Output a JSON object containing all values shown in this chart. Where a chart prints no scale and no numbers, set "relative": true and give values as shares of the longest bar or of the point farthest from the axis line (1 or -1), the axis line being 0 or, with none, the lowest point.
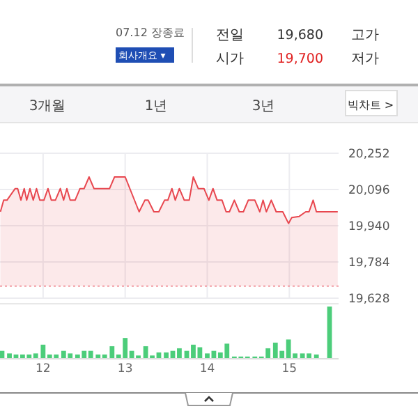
{
  "chart_data": [
    {
      "type": "other",
      "annotations": [
        "07.12 장종료",
        "회사개요 ▾",
        "전일",
        "19,680",
        "고가",
        "시가",
        "19,700",
        "저가",
        "3개월",
        "1년",
        "3년",
        "빅차트 >"
      ]
    },
    {
      "type": "area",
      "color": "#e8474f",
      "xlim": [
        11.475,
        15.6
      ],
      "ylim": [
        19628,
        20252
      ],
      "yticks": [
        {
          "value": 20252,
          "label": "20,252"
        },
        {
          "value": 20096,
          "label": "20,096"
        },
        {
          "value": 19940,
          "label": "19,940"
        },
        {
          "value": 19784,
          "label": "19,784"
        },
        {
          "value": 19628,
          "label": "19,628"
        }
      ],
      "xticks": [
        12,
        13,
        14,
        15
      ],
      "tick_labels": "y",
      "grid": true,
      "ref_lines": [
        {
          "axis": "y",
          "value": 19680,
          "color": "#f2a0a8",
          "line_style": "dotted"
        }
      ],
      "x": [
        11.48,
        11.52,
        11.56,
        11.66,
        11.69,
        11.73,
        11.77,
        11.8,
        11.84,
        11.88,
        11.92,
        11.96,
        12.01,
        12.06,
        12.1,
        12.15,
        12.21,
        12.25,
        12.29,
        12.33,
        12.39,
        12.45,
        12.5,
        12.56,
        12.62,
        12.81,
        12.87,
        13.0,
        13.17,
        13.24,
        13.28,
        13.35,
        13.41,
        13.48,
        13.52,
        13.57,
        13.61,
        13.66,
        13.72,
        13.78,
        13.83,
        13.89,
        13.96,
        14.02,
        14.07,
        14.12,
        14.18,
        14.23,
        14.27,
        14.33,
        14.39,
        14.44,
        14.5,
        14.58,
        14.64,
        14.68,
        14.72,
        14.78,
        14.84,
        14.92,
        14.99,
        15.03,
        15.12,
        15.2,
        15.24,
        15.29,
        15.33,
        15.59
      ],
      "values": [
        20000,
        20050,
        20050,
        20100,
        20100,
        20050,
        20100,
        20050,
        20100,
        20050,
        20100,
        20050,
        20050,
        20100,
        20050,
        20050,
        20100,
        20050,
        20100,
        20050,
        20050,
        20100,
        20100,
        20150,
        20100,
        20100,
        20150,
        20150,
        20000,
        20050,
        20050,
        20000,
        20000,
        20050,
        20050,
        20100,
        20050,
        20100,
        20050,
        20050,
        20150,
        20100,
        20100,
        20050,
        20100,
        20050,
        20050,
        20000,
        20000,
        20050,
        20000,
        20000,
        20050,
        20050,
        20000,
        20050,
        20000,
        20050,
        20000,
        20000,
        19950,
        19975,
        19980,
        20000,
        20000,
        20050,
        20000,
        20000
      ]
    },
    {
      "type": "bar",
      "color": "#4ccd7a",
      "relative": true,
      "xlim": [
        11.475,
        15.6
      ],
      "xticks": [
        12,
        13,
        14,
        15
      ],
      "tick_labels": "x",
      "x": [
        11.5,
        11.59,
        11.67,
        11.75,
        11.83,
        11.91,
        12.0,
        12.08,
        12.16,
        12.25,
        12.33,
        12.42,
        12.5,
        12.58,
        12.67,
        12.75,
        12.84,
        12.92,
        13.0,
        13.08,
        13.16,
        13.25,
        13.33,
        13.41,
        13.5,
        13.58,
        13.66,
        13.75,
        13.83,
        13.91,
        14.0,
        14.08,
        14.16,
        14.24,
        14.33,
        14.41,
        14.49,
        14.58,
        14.66,
        14.74,
        14.83,
        14.91,
        14.99,
        15.07,
        15.16,
        15.24,
        15.33,
        15.49
      ],
      "values": [
        0.14,
        0.09,
        0.07,
        0.07,
        0.07,
        0.09,
        0.26,
        0.07,
        0.07,
        0.14,
        0.09,
        0.07,
        0.14,
        0.14,
        0.07,
        0.07,
        0.23,
        0.07,
        0.39,
        0.14,
        0.05,
        0.23,
        0.05,
        0.11,
        0.11,
        0.14,
        0.19,
        0.14,
        0.26,
        0.21,
        0.09,
        0.14,
        0.11,
        0.28,
        0.03,
        0.03,
        0.03,
        0.03,
        0.03,
        0.19,
        0.3,
        0.14,
        0.36,
        0.09,
        0.09,
        0.09,
        0.07,
        1
      ]
    }
  ]
}
